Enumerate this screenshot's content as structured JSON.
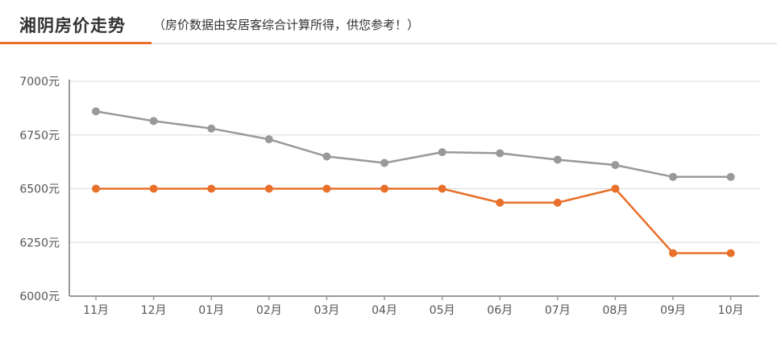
{
  "header": {
    "title": "湘阴房价走势",
    "subtitle": "（房价数据由安居客综合计算所得，供您参考！）",
    "accent_color": "#e8702a"
  },
  "chart_data": {
    "type": "line",
    "title": "湘阴房价走势",
    "subtitle": "（房价数据由安居客综合计算所得，供您参考！）",
    "xlabel": "",
    "ylabel": "",
    "categories": [
      "11月",
      "12月",
      "01月",
      "02月",
      "03月",
      "04月",
      "05月",
      "06月",
      "07月",
      "08月",
      "09月",
      "10月"
    ],
    "ylim": [
      6000,
      7000
    ],
    "yticks": [
      6000,
      6250,
      6500,
      6750,
      7000
    ],
    "ytick_labels": [
      "6000元",
      "6250元",
      "6500元",
      "6750元",
      "7000元"
    ],
    "grid": true,
    "legend": "none",
    "series": [
      {
        "color": "#999999",
        "values": [
          6860,
          6815,
          6780,
          6730,
          6650,
          6620,
          6670,
          6665,
          6635,
          6610,
          6555,
          6555
        ]
      },
      {
        "color": "#e8702a",
        "values": [
          6500,
          6500,
          6500,
          6500,
          6500,
          6500,
          6500,
          6435,
          6435,
          6500,
          6200,
          6200
        ]
      }
    ]
  }
}
